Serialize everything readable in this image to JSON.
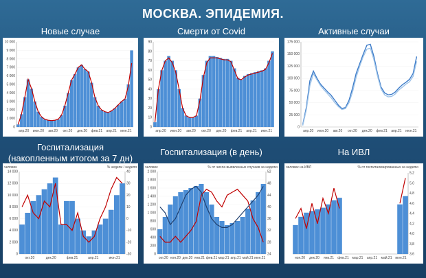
{
  "page": {
    "title": "МОСКВА. ЭПИДЕМИЯ."
  },
  "headers": {
    "new_cases": "Новые случае",
    "deaths": "Смерти от Covid",
    "active": "Активные случаи",
    "hosp7_line1": "Госпитализация",
    "hosp7_line2": "(накопленным итогом за 7 дн)",
    "hosp_day": "Госпитализация (в день)",
    "ivl": "На ИВЛ"
  },
  "colors": {
    "bar": "#4d8fd6",
    "red": "#c00000",
    "navy": "#1f3f6e",
    "light_line": "#9ec3e8"
  },
  "chart_data": [
    {
      "id": "new_cases",
      "type": "bar",
      "title": "Новые случае",
      "ylim": [
        0,
        10000
      ],
      "yticks": [
        "0",
        "1 000",
        "2 000",
        "3 000",
        "4 000",
        "5 000",
        "6 000",
        "7 000",
        "8 000",
        "9 000",
        "10 000"
      ],
      "xticks": [
        "апр.20",
        "июн.20",
        "авг.20",
        "окт.20",
        "дек.20",
        "фев.21",
        "апр.21",
        "июн.21"
      ],
      "bars": [
        300,
        1500,
        3500,
        5600,
        4500,
        3000,
        1800,
        1200,
        900,
        800,
        750,
        800,
        900,
        1400,
        2500,
        4000,
        5500,
        6200,
        7000,
        7300,
        6800,
        6500,
        5200,
        3500,
        2500,
        2000,
        1800,
        1700,
        1900,
        2200,
        2600,
        3000,
        3300,
        5000,
        9000
      ],
      "series": [
        {
          "name": "",
          "values": [
            300,
            1500,
            3500,
            5600,
            4500,
            3000,
            1800,
            1200,
            900,
            800,
            750,
            800,
            900,
            1400,
            2500,
            4000,
            5500,
            6200,
            7000,
            7300,
            6800,
            6500,
            5200,
            3500,
            2500,
            2000,
            1800,
            1700,
            1900,
            2200,
            2600,
            3000,
            3300,
            4800,
            7500
          ]
        }
      ]
    },
    {
      "id": "deaths",
      "type": "bar",
      "title": "Смерти от Covid",
      "ylim": [
        0,
        90
      ],
      "yticks": [
        "0",
        "10",
        "20",
        "30",
        "40",
        "50",
        "60",
        "70",
        "80",
        "90"
      ],
      "xticks": [
        "апр.20",
        "июн.20",
        "авг.20",
        "окт.20",
        "дек.20",
        "фев.21",
        "апр.21",
        "июн.21"
      ],
      "bars": [
        5,
        40,
        60,
        70,
        75,
        70,
        60,
        40,
        20,
        12,
        10,
        10,
        12,
        30,
        55,
        70,
        75,
        75,
        74,
        73,
        72,
        72,
        70,
        62,
        52,
        50,
        54,
        56,
        57,
        58,
        59,
        60,
        62,
        70,
        80
      ],
      "series": [
        {
          "name": "",
          "values": [
            5,
            40,
            60,
            70,
            73,
            68,
            58,
            40,
            20,
            12,
            10,
            10,
            12,
            28,
            52,
            68,
            73,
            73,
            73,
            72,
            71,
            71,
            69,
            60,
            51,
            50,
            53,
            55,
            56,
            57,
            58,
            59,
            61,
            68,
            78
          ]
        }
      ]
    },
    {
      "id": "active",
      "type": "line",
      "title": "Активные случаи",
      "ylim": [
        0,
        175000
      ],
      "yticks": [
        "0",
        "25 000",
        "50 000",
        "75 000",
        "100 000",
        "125 000",
        "150 000",
        "175 000"
      ],
      "xticks": [
        "апр.20",
        "июн.20",
        "авг.20",
        "окт.20",
        "дек.20",
        "фев.21",
        "апр.21",
        "июн.21"
      ],
      "series": [
        {
          "name": "",
          "values": [
            5000,
            40000,
            95000,
            115000,
            100000,
            88000,
            80000,
            72000,
            65000,
            55000,
            45000,
            38000,
            40000,
            55000,
            80000,
            110000,
            130000,
            150000,
            168000,
            170000,
            145000,
            110000,
            82000,
            70000,
            66000,
            67000,
            72000,
            80000,
            87000,
            92000,
            98000,
            110000,
            145000
          ]
        },
        {
          "name": "",
          "values": [
            3000,
            35000,
            85000,
            110000,
            97000,
            85000,
            76000,
            68000,
            60000,
            50000,
            42000,
            36000,
            38000,
            50000,
            72000,
            102000,
            125000,
            145000,
            160000,
            162000,
            138000,
            105000,
            78000,
            66000,
            62000,
            63000,
            68000,
            76000,
            82000,
            88000,
            93000,
            104000,
            135000
          ]
        }
      ]
    },
    {
      "id": "hosp7",
      "type": "bar",
      "title": "Госпитализация (накопленным итогом за 7 дн)",
      "ylabel": "человек",
      "y2label": "% недели / неделя",
      "ylim": [
        0,
        14000
      ],
      "y2lim": [
        -30,
        40
      ],
      "yticks": [
        "0",
        "2 000",
        "4 000",
        "6 000",
        "8 000",
        "10 000",
        "12 000",
        "14 000"
      ],
      "y2ticks": [
        "-30",
        "-20",
        "-10",
        "0",
        "10",
        "20",
        "30",
        "40"
      ],
      "xticks": [
        "окт.20",
        "дек.20",
        "фев.21",
        "апр.21",
        "июн.21"
      ],
      "bars": [
        5000,
        7000,
        9000,
        10000,
        11000,
        12000,
        13000,
        5000,
        9000,
        9000,
        6000,
        4000,
        3000,
        4000,
        5000,
        6000,
        7500,
        10000,
        12000
      ],
      "series": [
        {
          "name": "",
          "values": [
            10,
            20,
            5,
            0,
            15,
            10,
            30,
            -5,
            -5,
            -10,
            5,
            -15,
            -20,
            -15,
            0,
            10,
            25,
            35,
            30
          ]
        }
      ]
    },
    {
      "id": "hosp_day",
      "type": "bar",
      "title": "Госпитализация (в день)",
      "ylabel": "человек",
      "y2label": "% от числа выявленных случаев за неделю",
      "ylim": [
        0,
        2000
      ],
      "y2lim": [
        24,
        52
      ],
      "yticks": [
        "0",
        "200",
        "400",
        "600",
        "800",
        "1 000",
        "1 200",
        "1 400",
        "1 600",
        "1 800",
        "2 000"
      ],
      "y2ticks": [
        "24",
        "28",
        "32",
        "36",
        "40",
        "44",
        "48",
        "52"
      ],
      "xticks": [
        "окт.20",
        "ноя.20",
        "дек.20",
        "янв.21",
        "фев.21",
        "мар.21",
        "апр.21",
        "май.21",
        "июн.21"
      ],
      "bars": [
        600,
        900,
        1200,
        1400,
        1500,
        1550,
        1600,
        1650,
        1700,
        1500,
        1200,
        900,
        800,
        700,
        750,
        800,
        900,
        1100,
        1300,
        1500,
        1700
      ],
      "series": [
        {
          "name": "",
          "values": [
            30,
            28,
            28,
            30,
            28,
            30,
            32,
            35,
            44,
            46,
            45,
            42,
            40,
            44,
            45,
            46,
            44,
            42,
            36,
            33,
            28
          ]
        },
        {
          "name": "",
          "values": [
            40,
            38,
            34,
            36,
            40,
            44,
            46,
            47,
            45,
            40,
            36,
            34,
            33,
            33,
            34,
            36,
            38,
            40,
            42,
            44,
            47
          ]
        }
      ]
    },
    {
      "id": "ivl",
      "type": "bar",
      "title": "На ИВЛ",
      "ylabel": "человек на ИВЛ",
      "y2label": "% от госпитализированных за неделю",
      "y2lim": [
        3.6,
        5.2
      ],
      "y2ticks": [
        "3,6",
        "3,8",
        "4,0",
        "4,2",
        "4,4",
        "4,6",
        "4,8",
        "5,0",
        "5,2"
      ],
      "xticks": [
        "ноя.20",
        "дек.20",
        "янв.21",
        "фев.21",
        "мар.21",
        "апр.21",
        "май.21",
        "июн.21"
      ],
      "bars": [
        350,
        450,
        500,
        520,
        540,
        560,
        600,
        650,
        680,
        0,
        0,
        0,
        0,
        0,
        0,
        0,
        0,
        0,
        0,
        600,
        700
      ],
      "series": [
        {
          "name": "",
          "values": [
            4.3,
            4.5,
            4.1,
            4.6,
            4.2,
            4.7,
            4.4,
            4.9,
            4.5,
            null,
            null,
            null,
            null,
            null,
            null,
            null,
            null,
            null,
            null,
            4.6,
            5.1
          ]
        }
      ]
    }
  ]
}
